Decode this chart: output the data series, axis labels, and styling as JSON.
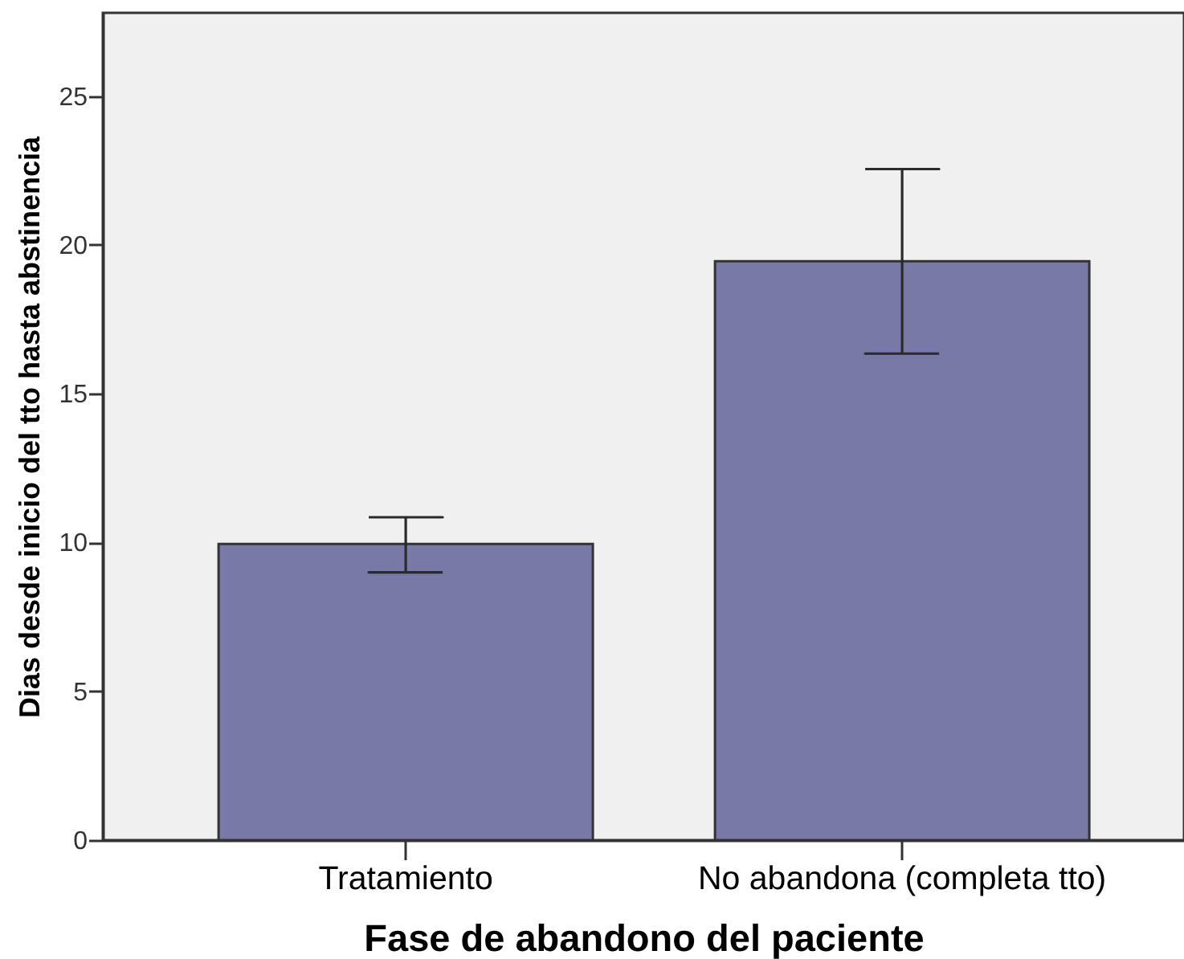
{
  "chart_data": {
    "type": "bar",
    "xlabel": "Fase de abandono del paciente",
    "ylabel": "Dias desde inicio del tto hasta abstinencia",
    "categories": [
      "Tratamiento",
      "No abandona (completa tto)"
    ],
    "values": [
      9.95,
      19.45
    ],
    "errors": [
      [
        9.0,
        10.85
      ],
      [
        16.35,
        22.55
      ]
    ],
    "color": "#7979a8",
    "ylim": [
      0,
      27.8
    ],
    "yticks": [
      0,
      5,
      10,
      15,
      20,
      25
    ]
  }
}
